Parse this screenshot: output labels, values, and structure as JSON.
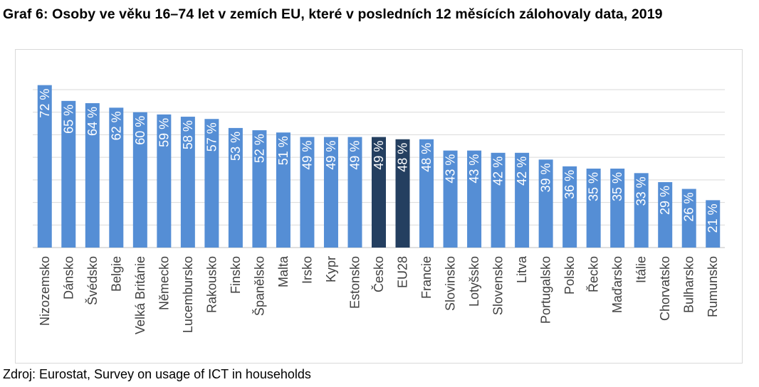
{
  "title": "Graf 6: Osoby ve věku 16–74 let v zemích EU, které v posledních 12 měsících zálohovaly data, 2019",
  "source": "Zdroj: Eurostat, Survey on usage of ICT in households",
  "colors": {
    "bar": "#558ed5",
    "highlight": "#243f60",
    "grid": "#d9d9d9",
    "axis": "#bfbfbf"
  },
  "chart_data": {
    "type": "bar",
    "title": "Graf 6: Osoby ve věku 16–74 let v zemích EU, které v posledních 12 měsících zálohovaly data, 2019",
    "categories": [
      "Nizozemsko",
      "Dánsko",
      "Švédsko",
      "Belgie",
      "Velká Británie",
      "Německo",
      "Lucembursko",
      "Rakousko",
      "Finsko",
      "Španělsko",
      "Malta",
      "Irsko",
      "Kypr",
      "Estonsko",
      "Česko",
      "EU28",
      "Francie",
      "Slovinsko",
      "Lotyšsko",
      "Slovensko",
      "Litva",
      "Portugalsko",
      "Polsko",
      "Řecko",
      "Maďarsko",
      "Itálie",
      "Chorvatsko",
      "Bulharsko",
      "Rumunsko"
    ],
    "values": [
      72,
      65,
      64,
      62,
      60,
      59,
      58,
      57,
      53,
      52,
      51,
      49,
      49,
      49,
      49,
      48,
      48,
      43,
      43,
      42,
      42,
      39,
      36,
      35,
      35,
      33,
      29,
      26,
      21
    ],
    "data_labels": [
      "72 %",
      "65 %",
      "64 %",
      "62 %",
      "60 %",
      "59 %",
      "58 %",
      "57 %",
      "53 %",
      "52 %",
      "51 %",
      "49 %",
      "49 %",
      "49 %",
      "49 %",
      "48 %",
      "48 %",
      "43 %",
      "43 %",
      "42 %",
      "42 %",
      "39 %",
      "36 %",
      "35 %",
      "35 %",
      "33 %",
      "29 %",
      "26 %",
      "21 %"
    ],
    "highlighted": [
      "Česko",
      "EU28"
    ],
    "ylim": [
      0,
      70
    ],
    "grid": true,
    "legend": false
  }
}
